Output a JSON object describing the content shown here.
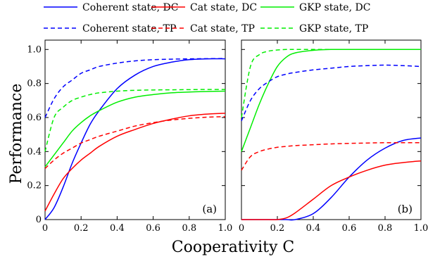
{
  "chart_data": [
    {
      "type": "line",
      "panel_label": "(a)",
      "xlim": [
        0,
        1
      ],
      "ylim": [
        0,
        1.05
      ],
      "x": [
        0,
        0.05,
        0.1,
        0.15,
        0.2,
        0.25,
        0.3,
        0.4,
        0.5,
        0.6,
        0.7,
        0.8,
        0.9,
        1.0
      ],
      "series": [
        {
          "name": "Coherent state, DC",
          "color": "#0000ff",
          "dash": false,
          "values": [
            0.0,
            0.07,
            0.19,
            0.33,
            0.45,
            0.56,
            0.64,
            0.77,
            0.85,
            0.9,
            0.925,
            0.94,
            0.945,
            0.945
          ]
        },
        {
          "name": "Cat state, DC",
          "color": "#ff0000",
          "dash": false,
          "values": [
            0.05,
            0.15,
            0.24,
            0.3,
            0.35,
            0.39,
            0.43,
            0.49,
            0.53,
            0.565,
            0.59,
            0.61,
            0.62,
            0.625
          ]
        },
        {
          "name": "GKP state, DC",
          "color": "#00ee00",
          "dash": false,
          "values": [
            0.31,
            0.38,
            0.45,
            0.52,
            0.57,
            0.61,
            0.64,
            0.69,
            0.72,
            0.735,
            0.745,
            0.75,
            0.753,
            0.755
          ]
        },
        {
          "name": "Coherent state, TP",
          "color": "#0000ff",
          "dash": true,
          "values": [
            0.6,
            0.71,
            0.78,
            0.82,
            0.86,
            0.88,
            0.9,
            0.92,
            0.933,
            0.94,
            0.943,
            0.945,
            0.946,
            0.947
          ]
        },
        {
          "name": "Cat state, TP",
          "color": "#ff0000",
          "dash": true,
          "values": [
            0.3,
            0.35,
            0.39,
            0.42,
            0.45,
            0.47,
            0.49,
            0.52,
            0.55,
            0.57,
            0.585,
            0.595,
            0.602,
            0.605
          ]
        },
        {
          "name": "GKP state, TP",
          "color": "#00ee00",
          "dash": true,
          "values": [
            0.4,
            0.6,
            0.66,
            0.7,
            0.72,
            0.735,
            0.745,
            0.755,
            0.76,
            0.762,
            0.763,
            0.764,
            0.765,
            0.765
          ]
        }
      ]
    },
    {
      "type": "line",
      "panel_label": "(b)",
      "xlim": [
        0,
        1
      ],
      "ylim": [
        0,
        1.05
      ],
      "x": [
        0,
        0.05,
        0.1,
        0.15,
        0.2,
        0.25,
        0.3,
        0.4,
        0.5,
        0.6,
        0.7,
        0.8,
        0.9,
        1.0
      ],
      "series": [
        {
          "name": "Coherent state, DC",
          "color": "#0000ff",
          "dash": false,
          "values": [
            0,
            0,
            0,
            0,
            0,
            0,
            0,
            0.035,
            0.13,
            0.25,
            0.35,
            0.42,
            0.465,
            0.48
          ]
        },
        {
          "name": "Cat state, DC",
          "color": "#ff0000",
          "dash": false,
          "values": [
            0,
            0,
            0,
            0,
            0,
            0.01,
            0.04,
            0.12,
            0.2,
            0.25,
            0.29,
            0.32,
            0.335,
            0.345
          ]
        },
        {
          "name": "GKP state, DC",
          "color": "#00ee00",
          "dash": false,
          "values": [
            0.4,
            0.54,
            0.68,
            0.8,
            0.9,
            0.955,
            0.98,
            0.995,
            1.0,
            1.0,
            1.0,
            1.0,
            1.0,
            1.0
          ]
        },
        {
          "name": "Coherent state, TP",
          "color": "#0000ff",
          "dash": true,
          "values": [
            0.58,
            0.7,
            0.77,
            0.81,
            0.84,
            0.855,
            0.865,
            0.88,
            0.89,
            0.9,
            0.905,
            0.908,
            0.905,
            0.9
          ]
        },
        {
          "name": "Cat state, TP",
          "color": "#ff0000",
          "dash": true,
          "values": [
            0.29,
            0.37,
            0.4,
            0.415,
            0.425,
            0.43,
            0.435,
            0.44,
            0.445,
            0.448,
            0.45,
            0.452,
            0.452,
            0.452
          ]
        },
        {
          "name": "GKP state, TP",
          "color": "#00ee00",
          "dash": true,
          "values": [
            0.6,
            0.9,
            0.97,
            0.99,
            0.997,
            1.0,
            1.0,
            1.0,
            1.0,
            1.0,
            1.0,
            1.0,
            1.0,
            1.0
          ]
        }
      ]
    }
  ],
  "legend": [
    {
      "label": "Coherent state, DC",
      "color": "#0000ff",
      "dash": false
    },
    {
      "label": "Cat state, DC",
      "color": "#ff0000",
      "dash": false
    },
    {
      "label": "GKP state, DC",
      "color": "#00ee00",
      "dash": false
    },
    {
      "label": "Coherent state, TP",
      "color": "#0000ff",
      "dash": true
    },
    {
      "label": "Cat state, TP",
      "color": "#ff0000",
      "dash": true
    },
    {
      "label": "GKP state, TP",
      "color": "#00ee00",
      "dash": true
    }
  ],
  "axes": {
    "ylabel": "Performance",
    "xlabel": "Cooperativity C",
    "yticks": [
      "0",
      "0.2",
      "0.4",
      "0.6",
      "0.8",
      "1.0"
    ],
    "yticks_values": [
      0,
      0.2,
      0.4,
      0.6,
      0.8,
      1.0
    ],
    "xticks": [
      "0",
      "0.2",
      "0.4",
      "0.6",
      "0.8",
      "1.0"
    ],
    "xticks_values": [
      0,
      0.2,
      0.4,
      0.6,
      0.8,
      1.0
    ]
  }
}
